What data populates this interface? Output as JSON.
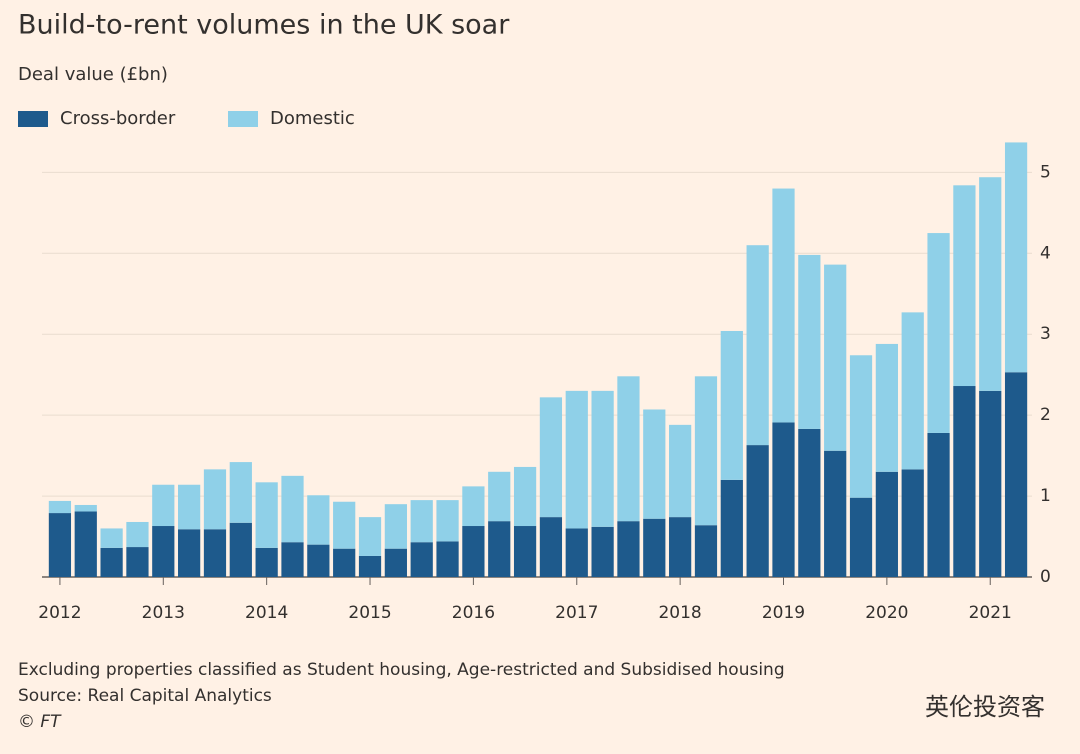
{
  "chart_data": {
    "type": "stacked-bar",
    "title": "Build-to-rent volumes in the UK soar",
    "subtitle": "Deal value (£bn)",
    "categories": [
      "2012",
      null,
      null,
      null,
      "2013",
      null,
      null,
      null,
      "2014",
      null,
      null,
      null,
      "2015",
      null,
      null,
      null,
      "2016",
      null,
      null,
      null,
      "2017",
      null,
      null,
      null,
      "2018",
      null,
      null,
      null,
      "2019",
      null,
      null,
      null,
      "2020",
      null,
      null,
      null,
      "2021",
      null
    ],
    "series": [
      {
        "name": "Cross-border",
        "color": "#1e5a8c",
        "values": [
          0.79,
          0.81,
          0.36,
          0.37,
          0.63,
          0.59,
          0.59,
          0.67,
          0.36,
          0.43,
          0.4,
          0.35,
          0.26,
          0.35,
          0.43,
          0.44,
          0.63,
          0.69,
          0.63,
          0.74,
          0.6,
          0.62,
          0.69,
          0.72,
          0.74,
          0.64,
          1.2,
          1.63,
          1.91,
          1.83,
          1.56,
          0.98,
          1.3,
          1.33,
          1.78,
          2.36,
          2.3,
          2.53
        ]
      },
      {
        "name": "Domestic",
        "color": "#8fd0e8",
        "values": [
          0.15,
          0.08,
          0.24,
          0.31,
          0.51,
          0.55,
          0.74,
          0.75,
          0.81,
          0.82,
          0.61,
          0.58,
          0.48,
          0.55,
          0.52,
          0.51,
          0.49,
          0.61,
          0.73,
          1.48,
          1.7,
          1.68,
          1.79,
          1.35,
          1.14,
          1.84,
          1.84,
          2.47,
          2.89,
          2.15,
          2.3,
          1.76,
          1.58,
          1.94,
          2.47,
          2.48,
          2.64,
          2.84
        ]
      }
    ],
    "ylim": [
      0,
      5.4
    ],
    "yticks": [
      0,
      1,
      2,
      3,
      4,
      5
    ],
    "grid": true,
    "y_axis_side": "right",
    "legend": "top-left",
    "notes": [
      "Excluding properties classified as Student housing, Age-restricted and Subsidised housing",
      "Source: Real Capital Analytics",
      "© FT"
    ],
    "watermark": "英伦投资客"
  }
}
